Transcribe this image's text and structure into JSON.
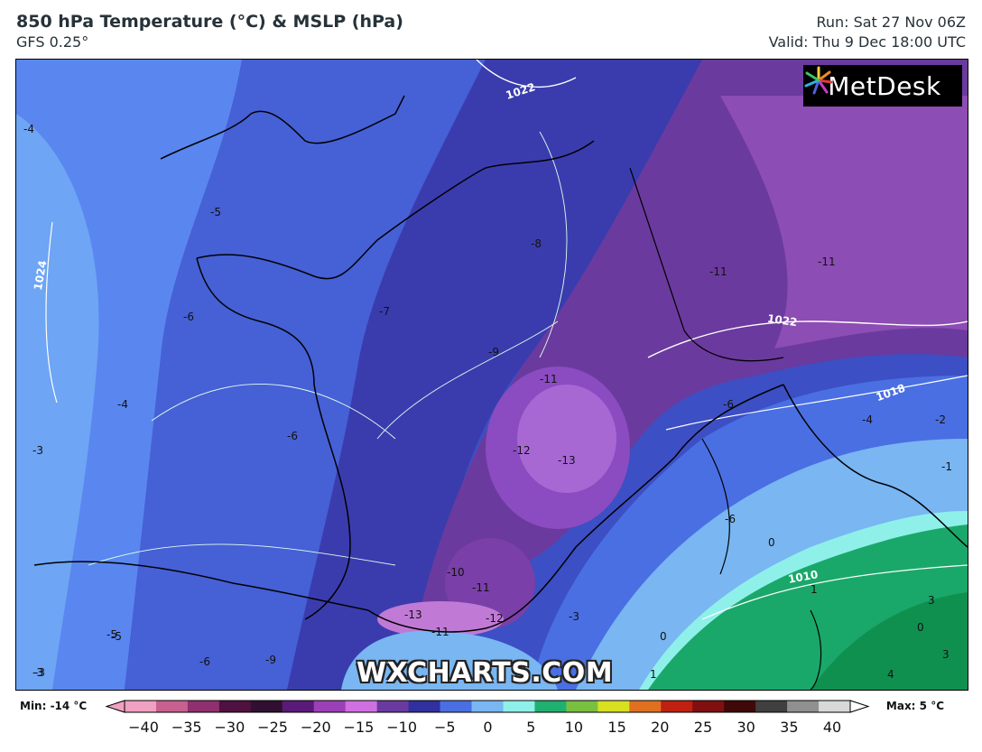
{
  "header": {
    "title": "850 hPa Temperature (°C) & MSLP (hPa)",
    "model": "GFS 0.25°",
    "run": "Run: Sat 27 Nov 06Z",
    "valid": "Valid: Thu 9 Dec 18:00 UTC"
  },
  "logo": {
    "text": "MetDesk",
    "icon": "metdesk-star-icon"
  },
  "watermark": "WXCHARTS.COM",
  "temperature_labels": [
    "-4",
    "-5",
    "-6",
    "-7",
    "-8",
    "-9",
    "-11",
    "-11",
    "-13",
    "-12",
    "-11",
    "-10",
    "-11",
    "-12",
    "-13",
    "-11",
    "-6",
    "-4",
    "-6",
    "-3",
    "-5",
    "-6",
    "-3",
    "-4",
    "-3",
    "-2",
    "-1",
    "0",
    "0",
    "1",
    "1",
    "3",
    "0",
    "3",
    "4",
    "-6",
    "-5",
    "-3",
    "-9"
  ],
  "isobar_labels": [
    "1022",
    "1024",
    "1022",
    "1018",
    "1010"
  ],
  "legend": {
    "min_label": "Min: -14 °C",
    "max_label": "Max: 5 °C",
    "ticks": [
      "−40",
      "−35",
      "−30",
      "−25",
      "−20",
      "−15",
      "−10",
      "−5",
      "0",
      "5",
      "10",
      "15",
      "20",
      "25",
      "30",
      "35",
      "40"
    ],
    "colors": [
      "#f0a0c0",
      "#c86090",
      "#903070",
      "#501040",
      "#301030",
      "#5a1a7a",
      "#9c40b8",
      "#d070e0",
      "#6a3aa0",
      "#3030a0",
      "#4a6fe3",
      "#79b6f2",
      "#8ff0ea",
      "#20b070",
      "#7ac040",
      "#d8e020",
      "#e07020",
      "#c02010",
      "#801010",
      "#400808",
      "#404040",
      "#909090",
      "#d8d8d8"
    ]
  }
}
